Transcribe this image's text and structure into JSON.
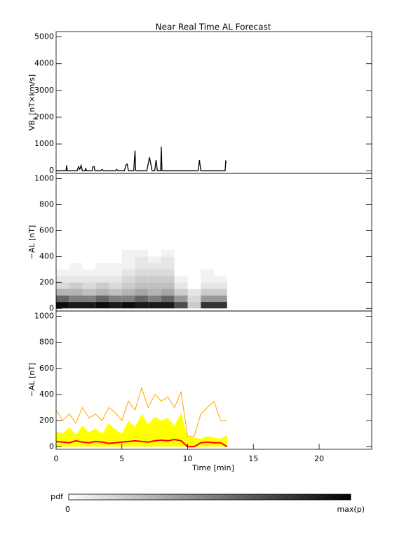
{
  "chart_data": [
    {
      "type": "line",
      "title": "Near Real Time AL Forecast",
      "ylabel": [
        "VB",
        "s",
        "[nT×km/s]"
      ],
      "x": [
        0,
        0.75,
        0.8,
        0.85,
        1.6,
        1.7,
        1.8,
        1.9,
        2.0,
        2.2,
        2.25,
        2.3,
        2.75,
        2.8,
        2.9,
        2.95,
        3.4,
        3.5,
        3.6,
        4.5,
        4.6,
        4.7,
        5.2,
        5.3,
        5.4,
        5.5,
        5.9,
        6.0,
        6.05,
        6.9,
        7.1,
        7.3,
        7.5,
        7.6,
        7.7,
        7.95,
        8.0,
        8.05,
        10.8,
        10.9,
        11.0,
        12.85,
        12.9,
        12.95
      ],
      "values": [
        0,
        0,
        200,
        0,
        0,
        150,
        50,
        200,
        0,
        0,
        100,
        0,
        0,
        150,
        150,
        0,
        0,
        50,
        0,
        0,
        50,
        0,
        0,
        200,
        250,
        0,
        0,
        750,
        0,
        0,
        500,
        0,
        0,
        400,
        0,
        0,
        900,
        0,
        0,
        400,
        0,
        0,
        350,
        300
      ],
      "color": "#000000",
      "xlim": [
        0,
        24
      ],
      "ylim": [
        -100,
        5200
      ],
      "yticks": [
        0,
        1000,
        2000,
        3000,
        4000,
        5000
      ]
    },
    {
      "type": "heatmap",
      "ylabel": "−AL [nT]",
      "x_bins": [
        0,
        1,
        2,
        3,
        4,
        5,
        6,
        7,
        8,
        9,
        10,
        11,
        12,
        13
      ],
      "y_bins": [
        0,
        50,
        100,
        150,
        200,
        250,
        300,
        350,
        400,
        450
      ],
      "z": [
        [
          0.95,
          0.9,
          0.9,
          0.95,
          0.9,
          0.95,
          0.9,
          0.9,
          0.9,
          0.7,
          0.2,
          0.8,
          0.8
        ],
        [
          0.6,
          0.5,
          0.5,
          0.6,
          0.5,
          0.5,
          0.6,
          0.5,
          0.6,
          0.4,
          0.15,
          0.4,
          0.4
        ],
        [
          0.3,
          0.3,
          0.25,
          0.3,
          0.25,
          0.3,
          0.35,
          0.3,
          0.35,
          0.2,
          0.1,
          0.2,
          0.2
        ],
        [
          0.15,
          0.2,
          0.15,
          0.2,
          0.15,
          0.2,
          0.25,
          0.25,
          0.25,
          0.1,
          0,
          0.1,
          0.1
        ],
        [
          0.1,
          0.1,
          0.1,
          0.1,
          0.1,
          0.15,
          0.2,
          0.2,
          0.2,
          0.05,
          0,
          0.05,
          0.05
        ],
        [
          0.05,
          0.05,
          0.05,
          0.05,
          0.05,
          0.1,
          0.15,
          0.15,
          0.15,
          0,
          0,
          0.05,
          0
        ],
        [
          0,
          0.05,
          0,
          0.05,
          0.05,
          0.05,
          0.1,
          0.1,
          0.1,
          0,
          0,
          0,
          0
        ],
        [
          0,
          0,
          0,
          0,
          0,
          0.05,
          0.1,
          0.05,
          0.1,
          0,
          0,
          0,
          0
        ],
        [
          0,
          0,
          0,
          0,
          0,
          0.05,
          0.05,
          0,
          0.05,
          0,
          0,
          0,
          0
        ]
      ],
      "xlim": [
        0,
        24
      ],
      "ylim": [
        -20,
        1040
      ],
      "yticks": [
        0,
        200,
        400,
        600,
        800,
        1000
      ]
    },
    {
      "type": "multiline",
      "ylabel": "−AL [nT]",
      "xlabel": "Time [min]",
      "x": [
        0,
        0.5,
        1,
        1.5,
        2,
        2.5,
        3,
        3.5,
        4,
        4.5,
        5,
        5.5,
        6,
        6.5,
        7,
        7.5,
        8,
        8.5,
        9,
        9.5,
        10,
        10.5,
        11,
        11.5,
        12,
        12.5,
        13
      ],
      "series": [
        {
          "color": "#ffff00",
          "style": "area",
          "values": [
            120,
            100,
            150,
            90,
            160,
            110,
            140,
            100,
            180,
            130,
            100,
            200,
            150,
            250,
            170,
            230,
            200,
            220,
            160,
            260,
            70,
            70,
            60,
            80,
            70,
            60,
            90
          ]
        },
        {
          "color": "#ffa500",
          "style": "line",
          "values": [
            280,
            200,
            250,
            180,
            300,
            220,
            250,
            200,
            300,
            260,
            200,
            350,
            280,
            450,
            300,
            400,
            350,
            380,
            300,
            420,
            80,
            80,
            250,
            300,
            350,
            200,
            200
          ]
        },
        {
          "color": "#ff0000",
          "style": "line",
          "values": [
            40,
            35,
            30,
            45,
            35,
            30,
            40,
            35,
            25,
            30,
            35,
            40,
            45,
            40,
            35,
            45,
            50,
            45,
            55,
            45,
            0,
            0,
            30,
            35,
            30,
            30,
            0
          ]
        }
      ],
      "xlim": [
        0,
        24
      ],
      "ylim": [
        -20,
        1040
      ],
      "yticks": [
        0,
        200,
        400,
        600,
        800,
        1000
      ],
      "xticks": [
        0,
        5,
        10,
        15,
        20
      ]
    }
  ],
  "colorbar": {
    "label": "pdf",
    "min_label": "0",
    "max_label": "max(p)"
  }
}
